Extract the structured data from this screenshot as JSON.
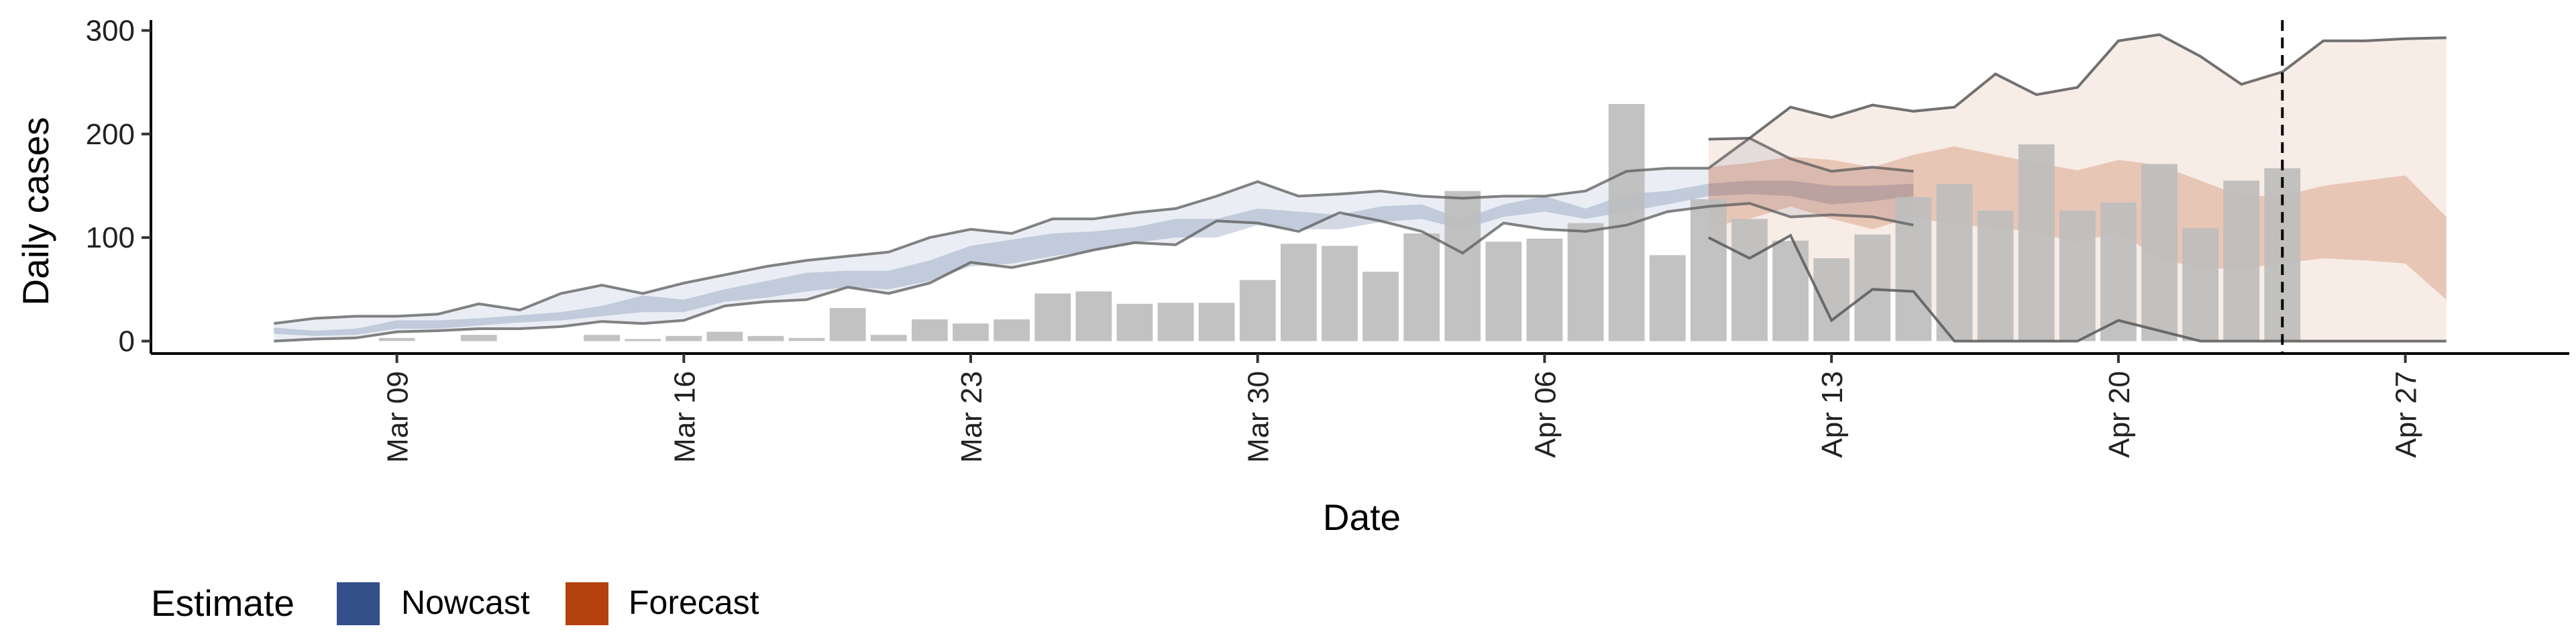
{
  "colors": {
    "nowcast": "#33508a",
    "forecast": "#b5410e",
    "bars": "#bdbdbd",
    "lines": "#595959"
  },
  "legend": {
    "title": "Estimate",
    "items": [
      {
        "label": "Nowcast",
        "color": "#33508a"
      },
      {
        "label": "Forecast",
        "color": "#b5410e"
      }
    ]
  },
  "chart_data": {
    "type": "bar",
    "xlabel": "Date",
    "ylabel": "Daily cases",
    "x_range": [
      "2020-03-03",
      "2020-05-01"
    ],
    "ylim": [
      -12,
      310
    ],
    "x_ticks": [
      "2020-03-09",
      "2020-03-16",
      "2020-03-23",
      "2020-03-30",
      "2020-04-06",
      "2020-04-13",
      "2020-04-20",
      "2020-04-27"
    ],
    "x_tick_labels": [
      "Mar 09",
      "Mar 16",
      "Mar 23",
      "Mar 30",
      "Apr 06",
      "Apr 13",
      "Apr 20",
      "Apr 27"
    ],
    "y_ticks": [
      0,
      100,
      200,
      300
    ],
    "y_tick_labels": [
      "0",
      "100",
      "200",
      "300"
    ],
    "forecast_start": "2020-04-24",
    "dates": [
      "2020-03-06",
      "2020-03-07",
      "2020-03-08",
      "2020-03-09",
      "2020-03-10",
      "2020-03-11",
      "2020-03-12",
      "2020-03-13",
      "2020-03-14",
      "2020-03-15",
      "2020-03-16",
      "2020-03-17",
      "2020-03-18",
      "2020-03-19",
      "2020-03-20",
      "2020-03-21",
      "2020-03-22",
      "2020-03-23",
      "2020-03-24",
      "2020-03-25",
      "2020-03-26",
      "2020-03-27",
      "2020-03-28",
      "2020-03-29",
      "2020-03-30",
      "2020-03-31",
      "2020-04-01",
      "2020-04-02",
      "2020-04-03",
      "2020-04-04",
      "2020-04-05",
      "2020-04-06",
      "2020-04-07",
      "2020-04-08",
      "2020-04-09",
      "2020-04-10",
      "2020-04-11",
      "2020-04-12",
      "2020-04-13",
      "2020-04-14",
      "2020-04-15",
      "2020-04-16",
      "2020-04-17",
      "2020-04-18",
      "2020-04-19",
      "2020-04-20",
      "2020-04-21",
      "2020-04-22",
      "2020-04-23",
      "2020-04-24",
      "2020-04-25",
      "2020-04-26",
      "2020-04-27",
      "2020-04-28"
    ],
    "reported_cases": {
      "dates": [
        "2020-03-06",
        "2020-03-07",
        "2020-03-08",
        "2020-03-09",
        "2020-03-10",
        "2020-03-11",
        "2020-03-12",
        "2020-03-13",
        "2020-03-14",
        "2020-03-15",
        "2020-03-16",
        "2020-03-17",
        "2020-03-18",
        "2020-03-19",
        "2020-03-20",
        "2020-03-21",
        "2020-03-22",
        "2020-03-23",
        "2020-03-24",
        "2020-03-25",
        "2020-03-26",
        "2020-03-27",
        "2020-03-28",
        "2020-03-29",
        "2020-03-30",
        "2020-03-31",
        "2020-04-01",
        "2020-04-02",
        "2020-04-03",
        "2020-04-04",
        "2020-04-05",
        "2020-04-06",
        "2020-04-07",
        "2020-04-08",
        "2020-04-09",
        "2020-04-10",
        "2020-04-11",
        "2020-04-12",
        "2020-04-13",
        "2020-04-14",
        "2020-04-15",
        "2020-04-16",
        "2020-04-17",
        "2020-04-18",
        "2020-04-19",
        "2020-04-20",
        "2020-04-21",
        "2020-04-22",
        "2020-04-23",
        "2020-04-24"
      ],
      "values": [
        0,
        0,
        0,
        3,
        0,
        6,
        0,
        0,
        6,
        2,
        5,
        9,
        5,
        3,
        32,
        6,
        21,
        17,
        21,
        46,
        48,
        36,
        37,
        37,
        59,
        94,
        92,
        67,
        104,
        145,
        96,
        99,
        114,
        229,
        83,
        137,
        118,
        97,
        80,
        103,
        139,
        152,
        126,
        190,
        126,
        134,
        171,
        109,
        155,
        167
      ]
    },
    "series": [
      {
        "name": "Nowcast",
        "band": "inner",
        "lower": [
          7,
          5,
          6,
          12,
          12,
          15,
          18,
          20,
          24,
          28,
          28,
          38,
          42,
          48,
          52,
          50,
          58,
          72,
          75,
          82,
          88,
          95,
          100,
          100,
          112,
          108,
          108,
          115,
          118,
          108,
          120,
          125,
          118,
          125,
          132,
          140,
          142,
          140,
          132,
          135,
          140
        ],
        "upper": [
          13,
          10,
          12,
          20,
          20,
          22,
          25,
          28,
          34,
          44,
          40,
          50,
          58,
          66,
          68,
          68,
          78,
          92,
          98,
          104,
          106,
          110,
          118,
          118,
          128,
          125,
          122,
          130,
          132,
          118,
          132,
          140,
          128,
          142,
          145,
          152,
          155,
          155,
          150,
          150,
          152
        ]
      },
      {
        "name": "Nowcast",
        "band": "outer",
        "lower": [
          0,
          2,
          3,
          9,
          10,
          12,
          12,
          14,
          19,
          17,
          20,
          34,
          38,
          40,
          52,
          46,
          56,
          76,
          71,
          79,
          88,
          95,
          93,
          116,
          114,
          106,
          124,
          116,
          106,
          85,
          114,
          108,
          106,
          112,
          125,
          130,
          133,
          120,
          122,
          120,
          112
        ],
        "upper": [
          17,
          22,
          24,
          24,
          26,
          36,
          30,
          46,
          54,
          46,
          56,
          64,
          72,
          78,
          82,
          86,
          100,
          108,
          104,
          118,
          118,
          124,
          128,
          140,
          154,
          140,
          142,
          145,
          140,
          138,
          140,
          140,
          145,
          164,
          167,
          167,
          196,
          176,
          164,
          168,
          164
        ]
      },
      {
        "name": "Forecast",
        "band": "inner",
        "lower": [
          110,
          118,
          130,
          118,
          108,
          120,
          112,
          110,
          105,
          95,
          105,
          80,
          70,
          70,
          75,
          80,
          78,
          75,
          40
        ],
        "upper": [
          168,
          172,
          178,
          175,
          168,
          180,
          188,
          180,
          172,
          165,
          175,
          170,
          155,
          140,
          140,
          150,
          155,
          160,
          120
        ]
      },
      {
        "name": "Forecast",
        "band": "outer",
        "lower": [
          100,
          80,
          102,
          20,
          50,
          48,
          0,
          0,
          0,
          0,
          20,
          10,
          0,
          0,
          0,
          0,
          0,
          0,
          0
        ],
        "upper": [
          195,
          196,
          226,
          216,
          228,
          222,
          226,
          258,
          238,
          245,
          290,
          296,
          275,
          248,
          260,
          290,
          290,
          292,
          293
        ]
      }
    ]
  }
}
